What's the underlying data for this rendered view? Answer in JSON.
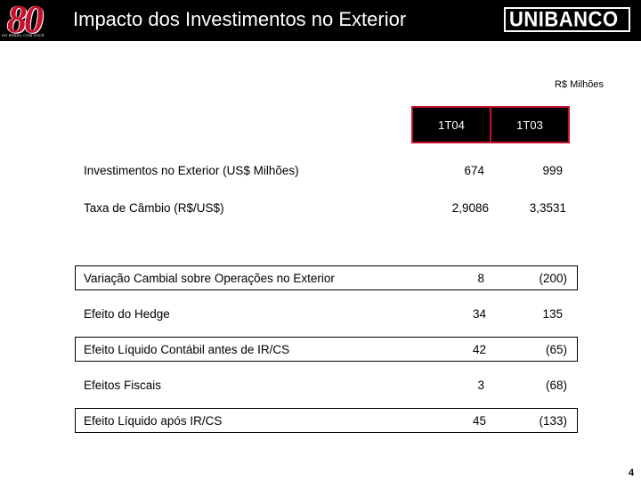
{
  "header": {
    "logo_text": "80",
    "logo_tagline": "DO BRASIL COM VOCÊ",
    "title": "Impacto dos Investimentos no Exterior",
    "brand": "UNIBANCO"
  },
  "table": {
    "unit": "R$ Milhões",
    "columns": [
      "1T04",
      "1T03"
    ],
    "rows": [
      {
        "label": "Investimentos no Exterior (US$ Milhões)",
        "values": [
          "674",
          "999"
        ],
        "boxed": false
      },
      {
        "label": "Taxa de Câmbio (R$/US$)",
        "values": [
          "2,9086",
          "3,3531"
        ],
        "boxed": false
      },
      {
        "label": "Variação Cambial sobre Operações no Exterior",
        "values": [
          "8",
          "(200)"
        ],
        "boxed": true
      },
      {
        "label": "Efeito do Hedge",
        "values": [
          "34",
          "135"
        ],
        "boxed": false
      },
      {
        "label": "Efeito Líquido Contábil antes de IR/CS",
        "values": [
          "42",
          "(65)"
        ],
        "boxed": true
      },
      {
        "label": "Efeitos Fiscais",
        "values": [
          "3",
          "(68)"
        ],
        "boxed": false
      },
      {
        "label": "Efeito Líquido após IR/CS",
        "values": [
          "45",
          "(133)"
        ],
        "boxed": true
      }
    ]
  },
  "footer": {
    "page_number": "4"
  },
  "colors": {
    "header_bg": "#000000",
    "accent_red": "#c8102e"
  }
}
